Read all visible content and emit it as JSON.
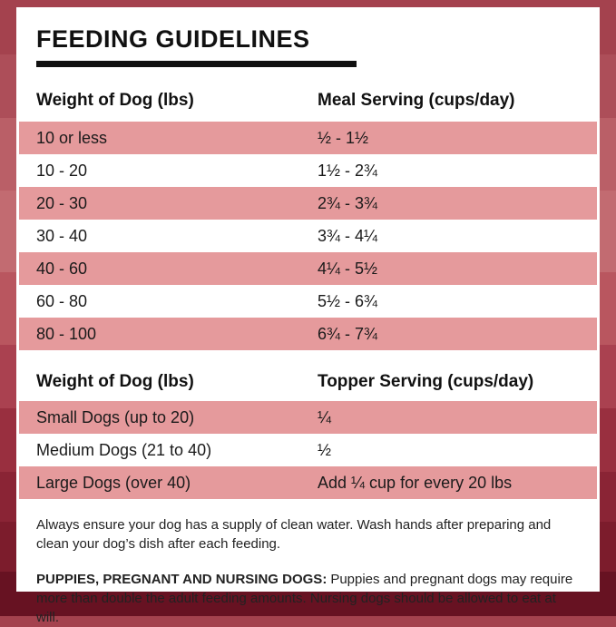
{
  "page": {
    "title": "FEEDING GUIDELINES"
  },
  "colors": {
    "row_pink": "#e59a9c",
    "card_white": "#ffffff",
    "text_black": "#111111",
    "background_top_red": "#a4424e",
    "background_bottom_maroon": "#671222"
  },
  "meal_table": {
    "col1_header": "Weight of Dog (lbs)",
    "col2_header": "Meal Serving (cups/day)",
    "rows": [
      {
        "weight": "10 or less",
        "serving": "½ - 1½"
      },
      {
        "weight": "10 - 20",
        "serving": "1½ - 2¾"
      },
      {
        "weight": "20 - 30",
        "serving": "2¾ - 3¾"
      },
      {
        "weight": "30 - 40",
        "serving": "3¾ - 4¼"
      },
      {
        "weight": "40 - 60",
        "serving": "4¼ - 5½"
      },
      {
        "weight": "60 - 80",
        "serving": "5½ - 6¾"
      },
      {
        "weight": "80 - 100",
        "serving": "6¾ - 7¾"
      }
    ]
  },
  "topper_table": {
    "col1_header": "Weight of Dog (lbs)",
    "col2_header": "Topper Serving (cups/day)",
    "rows": [
      {
        "weight": "Small Dogs (up to 20)",
        "serving": "¼"
      },
      {
        "weight": "Medium Dogs (21 to 40)",
        "serving": "½"
      },
      {
        "weight": "Large Dogs (over 40)",
        "serving": "Add ¼ cup for every 20 lbs"
      }
    ]
  },
  "notes": {
    "water_note": "Always ensure your dog has a supply of clean water. Wash hands after preparing and clean your dog’s dish after each feeding.",
    "puppies_label": "PUPPIES, PREGNANT AND NURSING DOGS:",
    "puppies_note": "Puppies and pregnant dogs may require more than double the adult feeding amounts. Nursing dogs should be allowed to eat at will."
  }
}
